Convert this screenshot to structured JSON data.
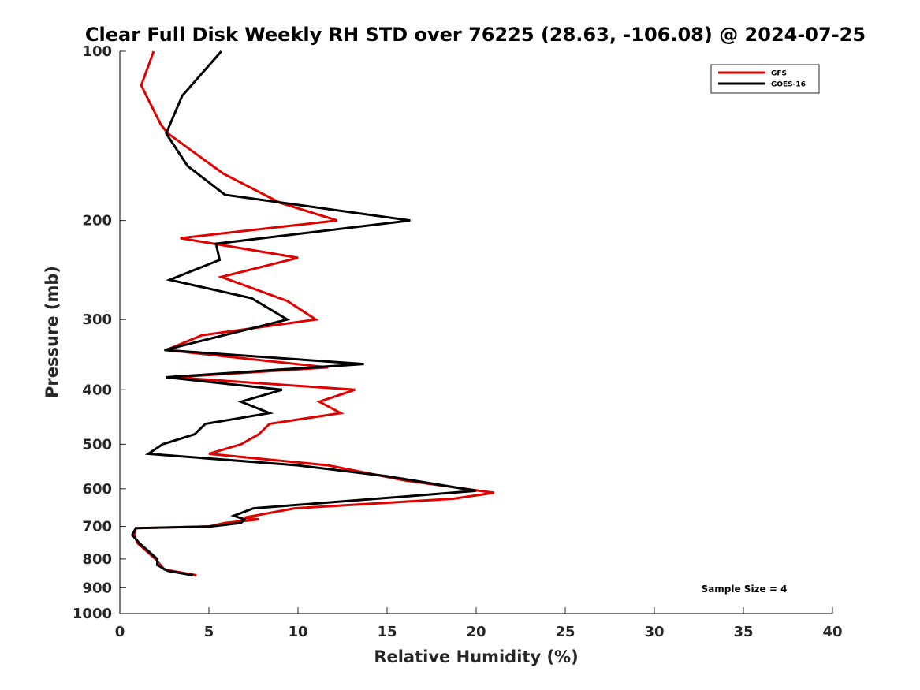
{
  "chart_data": {
    "type": "line",
    "title": "Clear Full Disk Weekly RH STD over 76225 (28.63, -106.08) @ 2024-07-25",
    "xlabel": "Relative Humidity (%)",
    "ylabel": "Pressure (mb)",
    "xlim": [
      0,
      40
    ],
    "ylim": [
      100,
      1000
    ],
    "yscale": "log",
    "y_reversed": true,
    "x_ticks": [
      0,
      5,
      10,
      15,
      20,
      25,
      30,
      35,
      40
    ],
    "y_ticks": [
      100,
      200,
      300,
      400,
      500,
      600,
      700,
      800,
      900,
      1000
    ],
    "grid": false,
    "legend_position": "top-right",
    "annotation": "Sample Size = 4",
    "series": [
      {
        "name": "GFS",
        "color": "#e00000",
        "points": [
          [
            1.9,
            100
          ],
          [
            1.2,
            115
          ],
          [
            2.3,
            135
          ],
          [
            2.7,
            140
          ],
          [
            5.8,
            165
          ],
          [
            9.0,
            186
          ],
          [
            12.2,
            200
          ],
          [
            3.4,
            215
          ],
          [
            10.0,
            233
          ],
          [
            5.7,
            252
          ],
          [
            9.4,
            278
          ],
          [
            11.0,
            300
          ],
          [
            4.6,
            320
          ],
          [
            2.6,
            340
          ],
          [
            11.7,
            365
          ],
          [
            3.0,
            380
          ],
          [
            13.2,
            400
          ],
          [
            11.2,
            420
          ],
          [
            12.4,
            440
          ],
          [
            8.4,
            460
          ],
          [
            7.8,
            480
          ],
          [
            6.8,
            500
          ],
          [
            5.0,
            520
          ],
          [
            11.7,
            545
          ],
          [
            16.0,
            580
          ],
          [
            21.0,
            610
          ],
          [
            18.7,
            625
          ],
          [
            9.8,
            650
          ],
          [
            7.0,
            675
          ],
          [
            7.8,
            680
          ],
          [
            5.9,
            690
          ],
          [
            5.0,
            700
          ],
          [
            0.9,
            705
          ],
          [
            0.8,
            725
          ],
          [
            1.0,
            750
          ],
          [
            2.0,
            800
          ],
          [
            2.5,
            835
          ],
          [
            4.3,
            855
          ]
        ]
      },
      {
        "name": "GOES-16",
        "color": "#000000",
        "points": [
          [
            5.7,
            100
          ],
          [
            3.5,
            120
          ],
          [
            2.6,
            140
          ],
          [
            3.8,
            160
          ],
          [
            5.9,
            180
          ],
          [
            16.3,
            200
          ],
          [
            5.4,
            220
          ],
          [
            5.6,
            235
          ],
          [
            2.8,
            255
          ],
          [
            7.4,
            275
          ],
          [
            9.4,
            300
          ],
          [
            2.5,
            340
          ],
          [
            13.7,
            360
          ],
          [
            2.6,
            380
          ],
          [
            9.1,
            400
          ],
          [
            6.8,
            420
          ],
          [
            8.4,
            440
          ],
          [
            4.8,
            460
          ],
          [
            4.2,
            480
          ],
          [
            2.4,
            500
          ],
          [
            1.6,
            520
          ],
          [
            10.0,
            545
          ],
          [
            15.0,
            570
          ],
          [
            20.0,
            605
          ],
          [
            15.8,
            620
          ],
          [
            7.5,
            650
          ],
          [
            6.4,
            670
          ],
          [
            7.0,
            680
          ],
          [
            6.8,
            690
          ],
          [
            5.1,
            700
          ],
          [
            0.9,
            705
          ],
          [
            0.7,
            725
          ],
          [
            1.1,
            750
          ],
          [
            2.1,
            800
          ],
          [
            2.1,
            820
          ],
          [
            2.7,
            840
          ],
          [
            4.1,
            855
          ]
        ]
      }
    ]
  }
}
